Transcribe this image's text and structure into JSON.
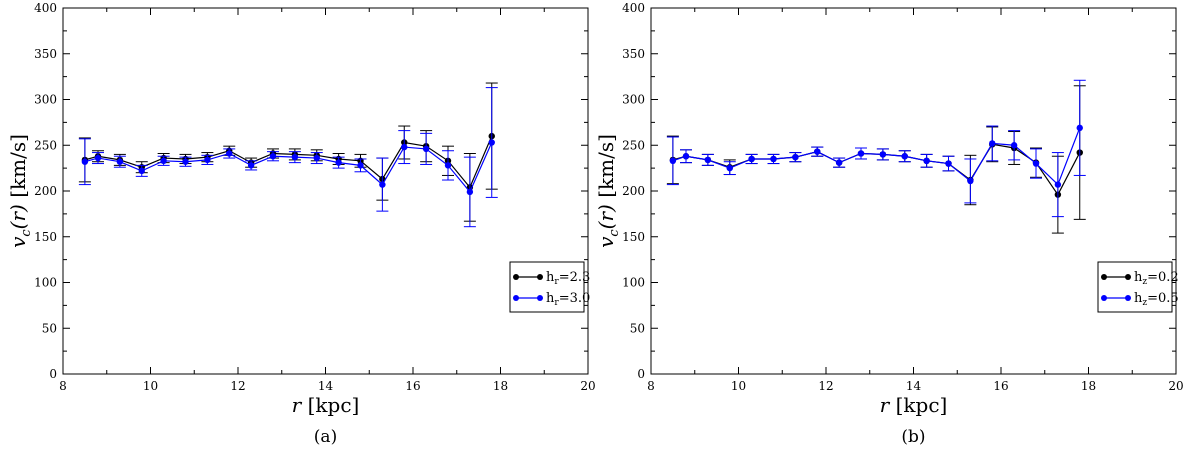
{
  "chart_data": [
    {
      "type": "line",
      "caption": "(a)",
      "xlabel": {
        "main": "r",
        "unit": "[kpc]"
      },
      "ylabel": {
        "main": "v",
        "sub": "c",
        "arg": "(r)",
        "unit": "[km/s]"
      },
      "xlim": [
        8,
        20
      ],
      "ylim": [
        0,
        400
      ],
      "x_ticks": [
        "8",
        "10",
        "12",
        "14",
        "16",
        "18",
        "20"
      ],
      "y_ticks": [
        "0",
        "50",
        "100",
        "150",
        "200",
        "250",
        "300",
        "350",
        "400"
      ],
      "legend_position": "bottom-right",
      "series": [
        {
          "name": "h",
          "name_sub": "r",
          "name_value": "=2.3",
          "color": "#000000",
          "x": [
            8.5,
            8.8,
            9.3,
            9.8,
            10.3,
            10.8,
            11.3,
            11.8,
            12.3,
            12.8,
            13.3,
            13.8,
            14.3,
            14.8,
            15.3,
            15.8,
            16.3,
            16.8,
            17.3,
            17.8
          ],
          "y": [
            234,
            238,
            234,
            226,
            236,
            235,
            237,
            244,
            231,
            241,
            240,
            239,
            235,
            233,
            213,
            253,
            249,
            233,
            204,
            260
          ],
          "err": [
            24,
            6,
            6,
            6,
            5,
            5,
            5,
            5,
            5,
            5,
            6,
            6,
            6,
            7,
            23,
            18,
            17,
            16,
            37,
            58
          ]
        },
        {
          "name": "h",
          "name_sub": "r",
          "name_value": "=3.0",
          "color": "#0000ff",
          "x": [
            8.5,
            8.8,
            9.3,
            9.8,
            10.3,
            10.8,
            11.3,
            11.8,
            12.3,
            12.8,
            13.3,
            13.8,
            14.3,
            14.8,
            15.3,
            15.8,
            16.3,
            16.8,
            17.3,
            17.8
          ],
          "y": [
            232,
            236,
            232,
            222,
            233,
            232,
            234,
            241,
            228,
            238,
            237,
            236,
            231,
            228,
            207,
            248,
            246,
            228,
            199,
            253
          ],
          "err": [
            25,
            6,
            6,
            6,
            5,
            5,
            5,
            5,
            5,
            5,
            6,
            6,
            6,
            7,
            29,
            18,
            17,
            16,
            38,
            60
          ]
        }
      ]
    },
    {
      "type": "line",
      "caption": "(b)",
      "xlabel": {
        "main": "r",
        "unit": "[kpc]"
      },
      "ylabel": {
        "main": "v",
        "sub": "c",
        "arg": "(r)",
        "unit": "[km/s]"
      },
      "xlim": [
        8,
        20
      ],
      "ylim": [
        0,
        400
      ],
      "x_ticks": [
        "8",
        "10",
        "12",
        "14",
        "16",
        "18",
        "20"
      ],
      "y_ticks": [
        "0",
        "50",
        "100",
        "150",
        "200",
        "250",
        "300",
        "350",
        "400"
      ],
      "legend_position": "bottom-right",
      "series": [
        {
          "name": "h",
          "name_sub": "z",
          "name_value": "=0.2",
          "color": "#000000",
          "x": [
            8.5,
            8.8,
            9.3,
            9.8,
            10.3,
            10.8,
            11.3,
            11.8,
            12.3,
            12.8,
            13.3,
            13.8,
            14.3,
            14.8,
            15.3,
            15.8,
            16.3,
            16.8,
            17.3,
            17.8
          ],
          "y": [
            234,
            238,
            234,
            226,
            235,
            235,
            237,
            243,
            231,
            241,
            240,
            238,
            233,
            230,
            212,
            251,
            247,
            231,
            196,
            242
          ],
          "err": [
            26,
            7,
            6,
            8,
            5,
            5,
            5,
            5,
            5,
            6,
            6,
            6,
            7,
            8,
            27,
            19,
            18,
            16,
            42,
            73
          ]
        },
        {
          "name": "h",
          "name_sub": "z",
          "name_value": "=0.5",
          "color": "#0000ff",
          "x": [
            8.5,
            8.8,
            9.3,
            9.8,
            10.3,
            10.8,
            11.3,
            11.8,
            12.3,
            12.8,
            13.3,
            13.8,
            14.3,
            14.8,
            15.3,
            15.8,
            16.3,
            16.8,
            17.3,
            17.8
          ],
          "y": [
            233,
            238,
            234,
            225,
            235,
            235,
            237,
            243,
            231,
            241,
            240,
            238,
            233,
            230,
            211,
            252,
            250,
            230,
            207,
            269
          ],
          "err": [
            26,
            7,
            6,
            7,
            5,
            5,
            5,
            5,
            5,
            6,
            6,
            6,
            7,
            8,
            24,
            19,
            16,
            16,
            35,
            52
          ]
        }
      ]
    }
  ]
}
